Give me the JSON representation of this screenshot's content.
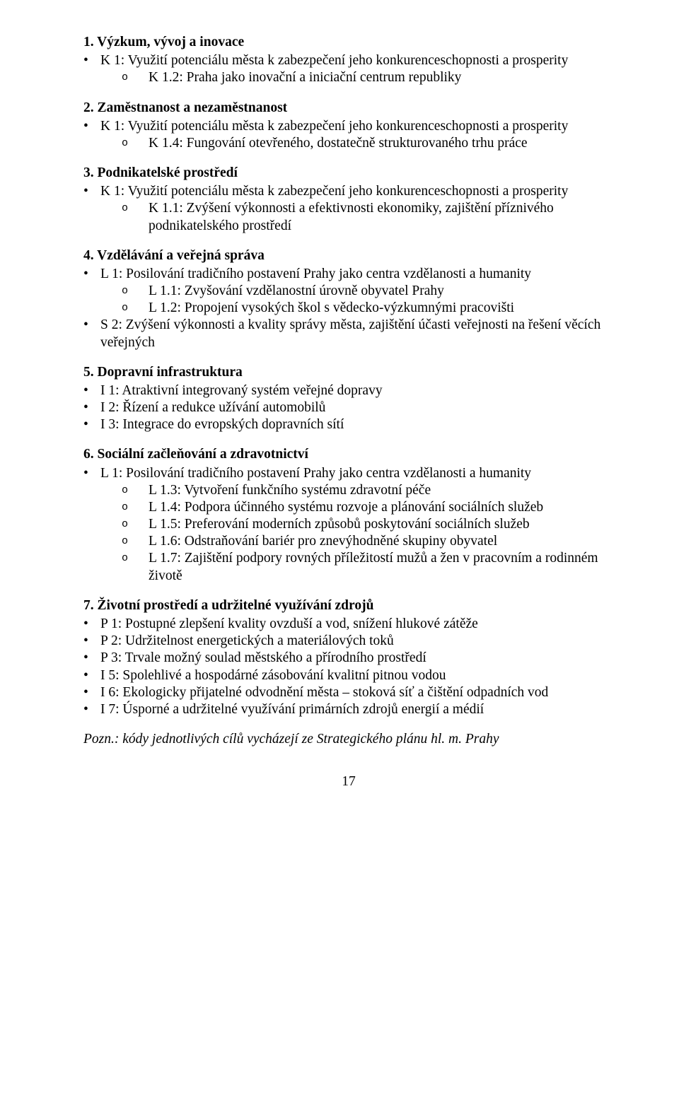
{
  "sections": [
    {
      "heading": "1. Výzkum, vývoj a inovace",
      "items": [
        {
          "text": "K 1: Využití potenciálu města k zabezpečení jeho konkurenceschopnosti a prosperity",
          "sub": [
            {
              "text": "K 1.2: Praha jako inovační a iniciační centrum republiky"
            }
          ]
        }
      ]
    },
    {
      "heading": "2. Zaměstnanost a nezaměstnanost",
      "items": [
        {
          "text": "K 1: Využití potenciálu města k zabezpečení jeho konkurenceschopnosti a prosperity",
          "sub": [
            {
              "text": "K 1.4: Fungování otevřeného, dostatečně strukturovaného trhu práce"
            }
          ]
        }
      ]
    },
    {
      "heading": "3. Podnikatelské prostředí",
      "items": [
        {
          "text": "K 1: Využití potenciálu města k zabezpečení jeho konkurenceschopnosti a prosperity",
          "sub": [
            {
              "text": "K 1.1: Zvýšení výkonnosti a efektivnosti ekonomiky, zajištění příznivého podnikatelského prostředí"
            }
          ]
        }
      ]
    },
    {
      "heading": "4. Vzdělávání a veřejná správa",
      "items": [
        {
          "text": "L 1: Posilování tradičního postavení Prahy jako centra vzdělanosti a humanity",
          "sub": [
            {
              "text": "L 1.1: Zvyšování vzdělanostní úrovně obyvatel Prahy"
            },
            {
              "text": "L 1.2: Propojení vysokých škol s vědecko-výzkumnými pracovišti"
            }
          ]
        },
        {
          "text": "S 2: Zvýšení výkonnosti a kvality správy města, zajištění účasti veřejnosti na řešení věcích veřejných"
        }
      ]
    },
    {
      "heading": "5. Dopravní infrastruktura",
      "items": [
        {
          "text": "I 1: Atraktivní integrovaný systém veřejné dopravy"
        },
        {
          "text": "I 2: Řízení a redukce užívání automobilů"
        },
        {
          "text": "I 3: Integrace do evropských dopravních sítí"
        }
      ]
    },
    {
      "heading": "6. Sociální začleňování a zdravotnictví",
      "items": [
        {
          "text": "L 1: Posilování tradičního postavení Prahy jako centra vzdělanosti a humanity",
          "sub": [
            {
              "text": "L 1.3: Vytvoření funkčního systému zdravotní péče"
            },
            {
              "text": "L 1.4: Podpora účinného systému rozvoje a plánování sociálních služeb"
            },
            {
              "text": "L 1.5: Preferování moderních způsobů poskytování sociálních služeb"
            },
            {
              "text": "L 1.6: Odstraňování bariér pro znevýhodněné skupiny obyvatel"
            },
            {
              "text": "L 1.7: Zajištění podpory rovných příležitostí mužů a žen v pracovním a rodinném životě",
              "wrap_indent": true
            }
          ]
        }
      ]
    },
    {
      "heading": "7. Životní prostředí a udržitelné využívání zdrojů",
      "items": [
        {
          "text": "P 1: Postupné zlepšení kvality ovzduší a vod, snížení hlukové zátěže"
        },
        {
          "text": "P 2: Udržitelnost energetických a materiálových toků"
        },
        {
          "text": "P 3: Trvale možný soulad městského a přírodního prostředí"
        },
        {
          "text": "I 5: Spolehlivé a hospodárné zásobování kvalitní pitnou vodou"
        },
        {
          "text": "I 6: Ekologicky přijatelné odvodnění města – stoková síť a čištění odpadních vod"
        },
        {
          "text": "I 7: Úsporné a udržitelné využívání primárních zdrojů energií a médií"
        }
      ]
    }
  ],
  "note": "Pozn.: kódy jednotlivých cílů vycházejí ze Strategického plánu hl. m. Prahy",
  "page_number": "17"
}
